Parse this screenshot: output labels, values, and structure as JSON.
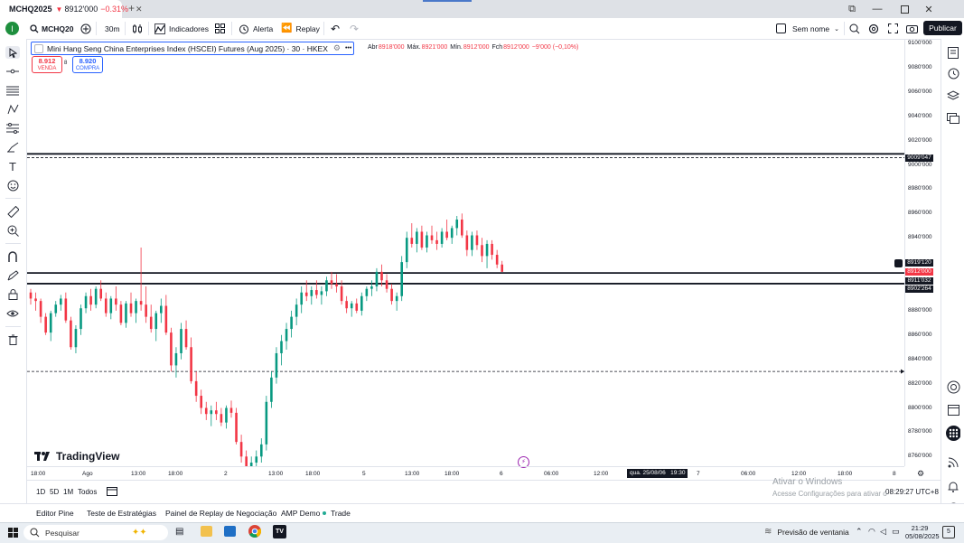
{
  "browser": {
    "tab_symbol": "MCHQ2025",
    "tab_arrow": "▼",
    "tab_price": "8912'000",
    "tab_change": "−0.31%",
    "new_tab": "+",
    "win_min": "—",
    "win_max": "❐",
    "win_close": "✕"
  },
  "toolbar": {
    "symbol": "MCHQ20",
    "interval": "30m",
    "indicators": "Indicadores",
    "alert": "Alerta",
    "replay": "Replay",
    "layout_name": "Sem nome",
    "publish": "Publicar"
  },
  "legend": {
    "title": "Mini Hang Seng China Enterprises Index (HSCEI) Futures (Aug 2025) · 30 · HKEX",
    "more": "•••",
    "ohlc": {
      "open_label": "Abr",
      "open": "8918'000",
      "high_label": "Máx.",
      "high": "8921'000",
      "low_label": "Mín.",
      "low": "8912'000",
      "close_label": "Fch",
      "close": "8912'000",
      "change": "−9'000 (−0,10%)"
    }
  },
  "trade": {
    "sell_price": "8.912",
    "sell_label": "VENDA",
    "spread": "8",
    "buy_price": "8.920",
    "buy_label": "COMPRA"
  },
  "price_scale": {
    "labels": [
      "9100'000",
      "9080'000",
      "9060'000",
      "9040'000",
      "9020'000",
      "9000'000",
      "8980'000",
      "8960'000",
      "8940'000",
      "8880'000",
      "8860'000",
      "8840'000",
      "8820'000",
      "8800'000",
      "8780'000",
      "8760'000"
    ],
    "tags": [
      {
        "text": "9009'047",
        "value": 9009.047,
        "bg": "#131722"
      },
      {
        "text": "8919'120",
        "value": 8919.12,
        "bg": "#131722"
      },
      {
        "text": "8912'000",
        "value": 8912,
        "bg": "#f23645"
      },
      {
        "text": "8911'032",
        "value": 8911.032,
        "bg": "#131722"
      },
      {
        "text": "8902'264",
        "value": 8902.264,
        "bg": "#131722"
      }
    ]
  },
  "time_scale": {
    "labels": [
      "18:00",
      "Ago",
      "13:00",
      "18:00",
      "2",
      "13:00",
      "18:00",
      "5",
      "13:00",
      "18:00",
      "6",
      "06:00",
      "12:00",
      "7",
      "06:00",
      "12:00",
      "18:00",
      "8"
    ],
    "crosshair_label": "qua. 25/08/06   19:30"
  },
  "chart_data": {
    "type": "candlestick",
    "symbol": "MCHQ2025",
    "interval": "30",
    "y_range": [
      8750,
      9105
    ],
    "horizontal_lines": [
      9009.047,
      8911.032,
      8902.264
    ],
    "dashed_lines": [
      9006,
      8830
    ],
    "last_price": 8912,
    "colors": {
      "up": "#089981",
      "down": "#f23645",
      "line": "#131722"
    },
    "candles": [
      [
        8895,
        8898,
        8885,
        8890
      ],
      [
        8890,
        8895,
        8880,
        8888
      ],
      [
        8888,
        8890,
        8870,
        8875
      ],
      [
        8875,
        8878,
        8860,
        8862
      ],
      [
        8862,
        8880,
        8855,
        8878
      ],
      [
        8878,
        8888,
        8875,
        8885
      ],
      [
        8885,
        8893,
        8880,
        8890
      ],
      [
        8890,
        8895,
        8870,
        8872
      ],
      [
        8872,
        8875,
        8848,
        8850
      ],
      [
        8850,
        8868,
        8845,
        8865
      ],
      [
        8865,
        8885,
        8860,
        8882
      ],
      [
        8882,
        8895,
        8878,
        8892
      ],
      [
        8892,
        8898,
        8880,
        8885
      ],
      [
        8885,
        8900,
        8882,
        8898
      ],
      [
        8898,
        8905,
        8888,
        8890
      ],
      [
        8890,
        8895,
        8875,
        8878
      ],
      [
        8878,
        8892,
        8873,
        8890
      ],
      [
        8890,
        8900,
        8880,
        8885
      ],
      [
        8885,
        8888,
        8868,
        8870
      ],
      [
        8870,
        8888,
        8866,
        8886
      ],
      [
        8886,
        8895,
        8875,
        8878
      ],
      [
        8878,
        8890,
        8870,
        8888
      ],
      [
        8888,
        8932,
        8880,
        8885
      ],
      [
        8885,
        8900,
        8870,
        8875
      ],
      [
        8875,
        8885,
        8862,
        8865
      ],
      [
        8865,
        8880,
        8855,
        8878
      ],
      [
        8878,
        8890,
        8870,
        8884
      ],
      [
        8884,
        8893,
        8860,
        8862
      ],
      [
        8862,
        8866,
        8830,
        8835
      ],
      [
        8835,
        8850,
        8825,
        8845
      ],
      [
        8845,
        8870,
        8840,
        8865
      ],
      [
        8865,
        8872,
        8848,
        8850
      ],
      [
        8850,
        8858,
        8820,
        8822
      ],
      [
        8822,
        8830,
        8805,
        8810
      ],
      [
        8810,
        8815,
        8795,
        8800
      ],
      [
        8800,
        8805,
        8790,
        8795
      ],
      [
        8795,
        8802,
        8785,
        8798
      ],
      [
        8798,
        8805,
        8790,
        8795
      ],
      [
        8795,
        8800,
        8785,
        8788
      ],
      [
        8788,
        8802,
        8783,
        8800
      ],
      [
        8800,
        8806,
        8792,
        8796
      ],
      [
        8796,
        8800,
        8770,
        8772
      ],
      [
        8772,
        8778,
        8755,
        8760
      ],
      [
        8760,
        8765,
        8745,
        8750
      ],
      [
        8750,
        8760,
        8745,
        8755
      ],
      [
        8755,
        8765,
        8748,
        8760
      ],
      [
        8760,
        8775,
        8755,
        8770
      ],
      [
        8770,
        8810,
        8765,
        8805
      ],
      [
        8805,
        8830,
        8800,
        8825
      ],
      [
        8825,
        8850,
        8820,
        8845
      ],
      [
        8845,
        8860,
        8835,
        8855
      ],
      [
        8855,
        8870,
        8848,
        8865
      ],
      [
        8865,
        8880,
        8858,
        8875
      ],
      [
        8875,
        8890,
        8868,
        8885
      ],
      [
        8885,
        8900,
        8878,
        8895
      ],
      [
        8895,
        8905,
        8888,
        8892
      ],
      [
        8892,
        8900,
        8885,
        8897
      ],
      [
        8897,
        8905,
        8890,
        8893
      ],
      [
        8893,
        8900,
        8885,
        8896
      ],
      [
        8896,
        8908,
        8892,
        8905
      ],
      [
        8905,
        8912,
        8898,
        8902
      ],
      [
        8902,
        8910,
        8895,
        8900
      ],
      [
        8900,
        8905,
        8885,
        8888
      ],
      [
        8888,
        8892,
        8878,
        8882
      ],
      [
        8882,
        8888,
        8875,
        8886
      ],
      [
        8886,
        8890,
        8878,
        8880
      ],
      [
        8880,
        8895,
        8876,
        8892
      ],
      [
        8892,
        8900,
        8888,
        8898
      ],
      [
        8898,
        8905,
        8892,
        8900
      ],
      [
        8900,
        8915,
        8896,
        8912
      ],
      [
        8912,
        8918,
        8900,
        8905
      ],
      [
        8905,
        8910,
        8895,
        8898
      ],
      [
        8898,
        8902,
        8885,
        8888
      ],
      [
        8888,
        8895,
        8880,
        8892
      ],
      [
        8892,
        8925,
        8888,
        8920
      ],
      [
        8920,
        8945,
        8915,
        8940
      ],
      [
        8940,
        8952,
        8932,
        8935
      ],
      [
        8935,
        8948,
        8928,
        8945
      ],
      [
        8945,
        8950,
        8930,
        8932
      ],
      [
        8932,
        8945,
        8928,
        8942
      ],
      [
        8942,
        8950,
        8935,
        8938
      ],
      [
        8938,
        8945,
        8930,
        8935
      ],
      [
        8935,
        8948,
        8932,
        8945
      ],
      [
        8945,
        8955,
        8938,
        8940
      ],
      [
        8940,
        8950,
        8935,
        8948
      ],
      [
        8948,
        8958,
        8942,
        8955
      ],
      [
        8955,
        8960,
        8940,
        8942
      ],
      [
        8942,
        8946,
        8925,
        8930
      ],
      [
        8930,
        8945,
        8925,
        8942
      ],
      [
        8942,
        8946,
        8930,
        8934
      ],
      [
        8934,
        8940,
        8920,
        8925
      ],
      [
        8925,
        8938,
        8915,
        8935
      ],
      [
        8935,
        8938,
        8922,
        8926
      ],
      [
        8926,
        8930,
        8915,
        8918
      ],
      [
        8918,
        8921,
        8912,
        8912
      ]
    ]
  },
  "range_bar": {
    "r1": "1D",
    "r2": "5D",
    "r3": "1M",
    "r4": "Todos",
    "clock": "08:29:27 UTC+8"
  },
  "watermark": {
    "title": "Ativar o Windows",
    "subtitle": "Acesse Configurações para ativar o"
  },
  "panel_tabs": [
    "Editor Pine",
    "Teste de Estratégias",
    "Painel de Replay de Negociação",
    "AMP Demo",
    "Trade"
  ],
  "taskbar": {
    "search": "Pesquisar",
    "weather": "Previsão de ventania",
    "time": "21:29",
    "date": "05/08/2025",
    "notif": "5"
  },
  "logo": "TradingView"
}
